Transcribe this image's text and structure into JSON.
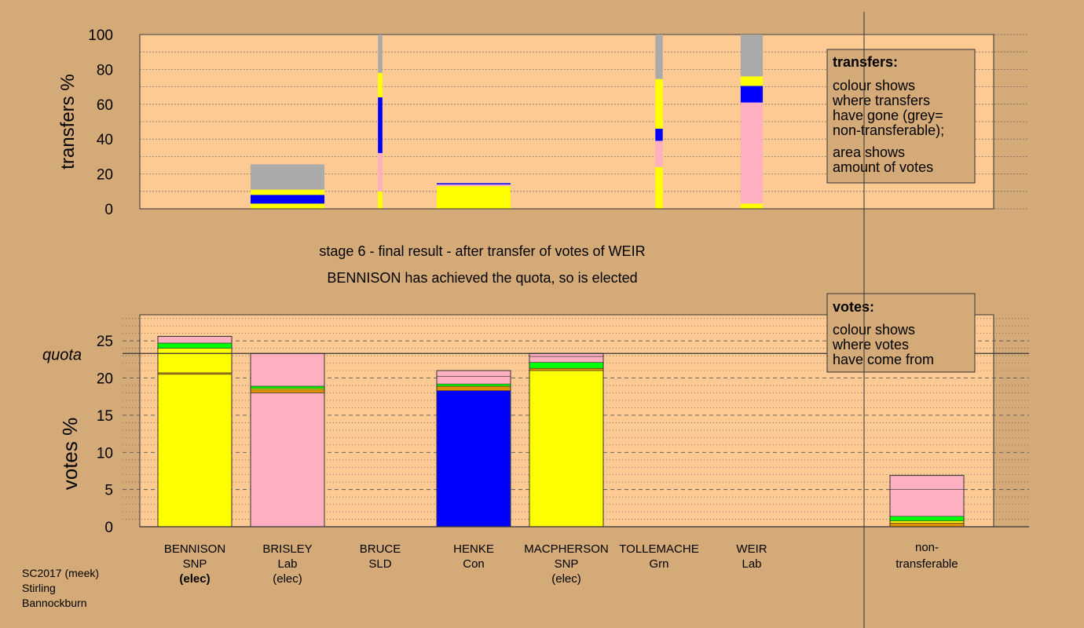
{
  "colors": {
    "background": "#d4aa78",
    "plot_bg": "#fdca94",
    "SNP": "#ffff00",
    "Lab": "#ffb0c0",
    "Con": "#0000ff",
    "Grn": "#00ff00",
    "SLD": "#e09000",
    "nontransferable": "#aaaaaa"
  },
  "candidates": [
    {
      "name": "BENNISON",
      "party": "SNP",
      "status": "(elec)",
      "bold": true
    },
    {
      "name": "BRISLEY",
      "party": "Lab",
      "status": "(elec)",
      "bold": false
    },
    {
      "name": "BRUCE",
      "party": "SLD",
      "status": "",
      "bold": false
    },
    {
      "name": "HENKE",
      "party": "Con",
      "status": "",
      "bold": false
    },
    {
      "name": "MACPHERSON",
      "party": "SNP",
      "status": "(elec)",
      "bold": false
    },
    {
      "name": "TOLLEMACHE",
      "party": "Grn",
      "status": "",
      "bold": false
    },
    {
      "name": "WEIR",
      "party": "Lab",
      "status": "",
      "bold": false
    }
  ],
  "nontransferable_label": [
    "non-",
    "transferable"
  ],
  "stage_text": "stage 6 - final result - after transfer of votes of WEIR",
  "result_text": "BENNISON has achieved the quota, so is elected",
  "quota_label": "quota",
  "footer": [
    "SC2017 (meek)",
    "Stirling",
    "Bannockburn"
  ],
  "legend_transfers": {
    "title": "transfers:",
    "lines": [
      "colour shows",
      "where transfers",
      "have gone (grey=",
      "non-transferable);",
      "area shows",
      "amount of votes"
    ]
  },
  "legend_votes": {
    "title": "votes:",
    "lines": [
      "colour shows",
      "where votes",
      "have come from"
    ]
  },
  "chart_data": [
    {
      "type": "bar",
      "stacked": true,
      "title": "",
      "ylabel": "transfers %",
      "ylim": [
        0,
        100
      ],
      "yticks": [
        0,
        20,
        40,
        60,
        80,
        100
      ],
      "categories": [
        "BENNISON",
        "BRISLEY",
        "BRUCE",
        "HENKE",
        "MACPHERSON",
        "TOLLEMACHE",
        "WEIR"
      ],
      "bars": [
        {
          "candidate": "BRISLEY",
          "width_share": 1.0,
          "segments": [
            {
              "color": "SNP",
              "from": 0,
              "to": 3
            },
            {
              "color": "Con",
              "from": 3,
              "to": 8
            },
            {
              "color": "SNP",
              "from": 8,
              "to": 11
            },
            {
              "color": "nontransferable",
              "from": 11,
              "to": 25.5
            }
          ]
        },
        {
          "candidate": "BRUCE",
          "width_share": 0.06,
          "segments": [
            {
              "color": "SNP",
              "from": 0,
              "to": 10
            },
            {
              "color": "Lab",
              "from": 10,
              "to": 32
            },
            {
              "color": "Con",
              "from": 32,
              "to": 64
            },
            {
              "color": "SNP",
              "from": 64,
              "to": 78
            },
            {
              "color": "nontransferable",
              "from": 78,
              "to": 100
            }
          ]
        },
        {
          "candidate": "HENKE",
          "width_share": 1.0,
          "segments": [
            {
              "color": "SNP",
              "from": 0,
              "to": 13
            },
            {
              "color": "Lab",
              "from": 13,
              "to": 14
            },
            {
              "color": "Con",
              "from": 14,
              "to": 14.7
            }
          ]
        },
        {
          "candidate": "TOLLEMACHE",
          "width_share": 0.1,
          "segments": [
            {
              "color": "SNP",
              "from": 0,
              "to": 24
            },
            {
              "color": "Lab",
              "from": 24,
              "to": 39
            },
            {
              "color": "Con",
              "from": 39,
              "to": 46
            },
            {
              "color": "SNP",
              "from": 46,
              "to": 74.5
            },
            {
              "color": "nontransferable",
              "from": 74.5,
              "to": 100
            }
          ]
        },
        {
          "candidate": "WEIR",
          "width_share": 0.3,
          "segments": [
            {
              "color": "SNP",
              "from": 0,
              "to": 3
            },
            {
              "color": "Lab",
              "from": 3,
              "to": 61
            },
            {
              "color": "Con",
              "from": 61,
              "to": 70.5
            },
            {
              "color": "SNP",
              "from": 70.5,
              "to": 76
            },
            {
              "color": "nontransferable",
              "from": 76,
              "to": 100
            }
          ]
        }
      ]
    },
    {
      "type": "bar",
      "stacked": true,
      "title": "",
      "ylabel": "votes %",
      "ylim": [
        0,
        28.5
      ],
      "yticks": [
        0,
        5,
        10,
        15,
        20,
        25
      ],
      "quota": 23.3,
      "categories": [
        "BENNISON",
        "BRISLEY",
        "BRUCE",
        "HENKE",
        "MACPHERSON",
        "TOLLEMACHE",
        "WEIR",
        "non-transferable"
      ],
      "bars": [
        {
          "candidate": "BENNISON",
          "segments": [
            {
              "color": "SNP",
              "from": 0,
              "to": 20.5
            },
            {
              "color": "SLD",
              "from": 20.5,
              "to": 20.7
            },
            {
              "color": "SNP",
              "from": 20.7,
              "to": 24.0
            },
            {
              "color": "Grn",
              "from": 24.0,
              "to": 24.7
            },
            {
              "color": "Lab",
              "from": 24.7,
              "to": 25.6
            }
          ]
        },
        {
          "candidate": "BRISLEY",
          "segments": [
            {
              "color": "Lab",
              "from": 0,
              "to": 18.0
            },
            {
              "color": "SLD",
              "from": 18.0,
              "to": 18.4
            },
            {
              "color": "SNP",
              "from": 18.4,
              "to": 18.6
            },
            {
              "color": "Grn",
              "from": 18.6,
              "to": 18.9
            },
            {
              "color": "Lab",
              "from": 18.9,
              "to": 23.3
            }
          ]
        },
        {
          "candidate": "HENKE",
          "segments": [
            {
              "color": "Con",
              "from": 0,
              "to": 18.3
            },
            {
              "color": "SLD",
              "from": 18.3,
              "to": 18.9
            },
            {
              "color": "Grn",
              "from": 18.9,
              "to": 19.2
            },
            {
              "color": "Lab",
              "from": 19.2,
              "to": 20.2
            },
            {
              "color": "Lab",
              "from": 20.2,
              "to": 21.0
            }
          ]
        },
        {
          "candidate": "MACPHERSON",
          "segments": [
            {
              "color": "SNP",
              "from": 0,
              "to": 21.0
            },
            {
              "color": "SLD",
              "from": 21.0,
              "to": 21.3
            },
            {
              "color": "Grn",
              "from": 21.3,
              "to": 22.1
            },
            {
              "color": "Lab",
              "from": 22.1,
              "to": 22.9
            },
            {
              "color": "Lab",
              "from": 22.9,
              "to": 23.3
            }
          ]
        },
        {
          "candidate": "non-transferable",
          "segments": [
            {
              "color": "SLD",
              "from": 0,
              "to": 0.5
            },
            {
              "color": "SNP",
              "from": 0.5,
              "to": 0.8
            },
            {
              "color": "Grn",
              "from": 0.8,
              "to": 1.4
            },
            {
              "color": "Lab",
              "from": 1.4,
              "to": 5.0
            },
            {
              "color": "Lab",
              "from": 5.0,
              "to": 6.9
            }
          ]
        }
      ]
    }
  ]
}
